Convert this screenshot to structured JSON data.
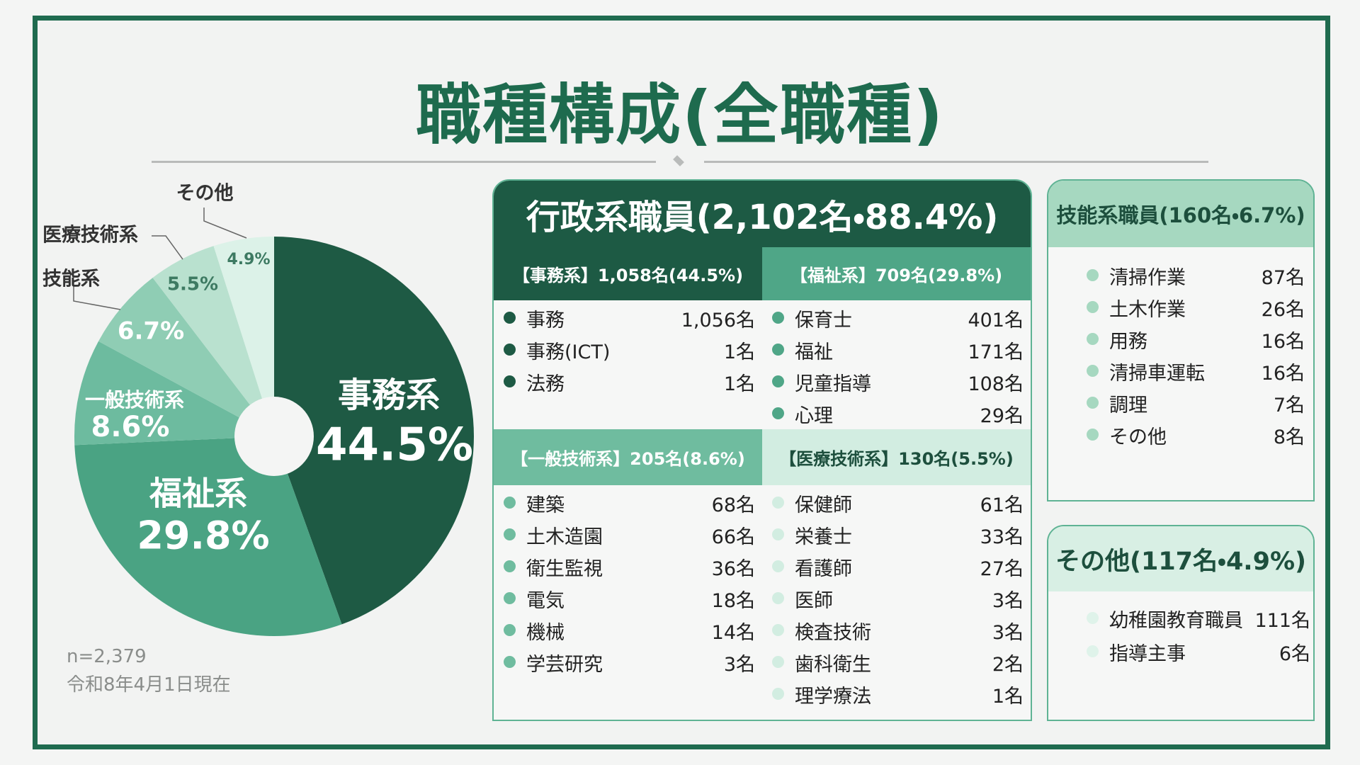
{
  "title": "職種構成(全職種)",
  "chart_data": {
    "type": "pie",
    "categories": [
      "事務系",
      "福祉系",
      "一般技術系",
      "技能系",
      "医療技術系",
      "その他"
    ],
    "values": [
      44.5,
      29.8,
      8.6,
      6.7,
      5.5,
      4.9
    ],
    "value_labels": [
      "44.5%",
      "29.8%",
      "8.6%",
      "6.7%",
      "5.5%",
      "4.9%"
    ],
    "colors": [
      "#1e5a44",
      "#4aa383",
      "#6dbb9f",
      "#8fcdb4",
      "#b9e1cf",
      "#dcf2e8"
    ]
  },
  "note": {
    "n": "n=2,379",
    "date": "令和8年4月1日現在"
  },
  "admin": {
    "title": "行政系職員(2,102名・88.4%)",
    "groups": [
      {
        "title": "【事務系】1,058名(44.5%)",
        "items": [
          {
            "name": "事務",
            "count": "1,056名"
          },
          {
            "name": "事務(ICT)",
            "count": "1名"
          },
          {
            "name": "法務",
            "count": "1名"
          }
        ]
      },
      {
        "title": "【福祉系】709名(29.8%)",
        "items": [
          {
            "name": "保育士",
            "count": "401名"
          },
          {
            "name": "福祉",
            "count": "171名"
          },
          {
            "name": "児童指導",
            "count": "108名"
          },
          {
            "name": "心理",
            "count": "29名"
          }
        ]
      },
      {
        "title": "【一般技術系】205名(8.6%)",
        "items": [
          {
            "name": "建築",
            "count": "68名"
          },
          {
            "name": "土木造園",
            "count": "66名"
          },
          {
            "name": "衛生監視",
            "count": "36名"
          },
          {
            "name": "電気",
            "count": "18名"
          },
          {
            "name": "機械",
            "count": "14名"
          },
          {
            "name": "学芸研究",
            "count": "3名"
          }
        ]
      },
      {
        "title": "【医療技術系】130名(5.5%)",
        "items": [
          {
            "name": "保健師",
            "count": "61名"
          },
          {
            "name": "栄養士",
            "count": "33名"
          },
          {
            "name": "看護師",
            "count": "27名"
          },
          {
            "name": "医師",
            "count": "3名"
          },
          {
            "name": "検査技術",
            "count": "3名"
          },
          {
            "name": "歯科衛生",
            "count": "2名"
          },
          {
            "name": "理学療法",
            "count": "1名"
          }
        ]
      }
    ]
  },
  "skill": {
    "title": "技能系職員(160名・6.7%)",
    "items": [
      {
        "name": "清掃作業",
        "count": "87名"
      },
      {
        "name": "土木作業",
        "count": "26名"
      },
      {
        "name": "用務",
        "count": "16名"
      },
      {
        "name": "清掃車運転",
        "count": "16名"
      },
      {
        "name": "調理",
        "count": "7名"
      },
      {
        "name": "その他",
        "count": "8名"
      }
    ]
  },
  "other": {
    "title": "その他(117名・4.9%)",
    "items": [
      {
        "name": "幼稚園教育職員",
        "count": "111名"
      },
      {
        "name": "指導主事",
        "count": "6名"
      }
    ]
  }
}
